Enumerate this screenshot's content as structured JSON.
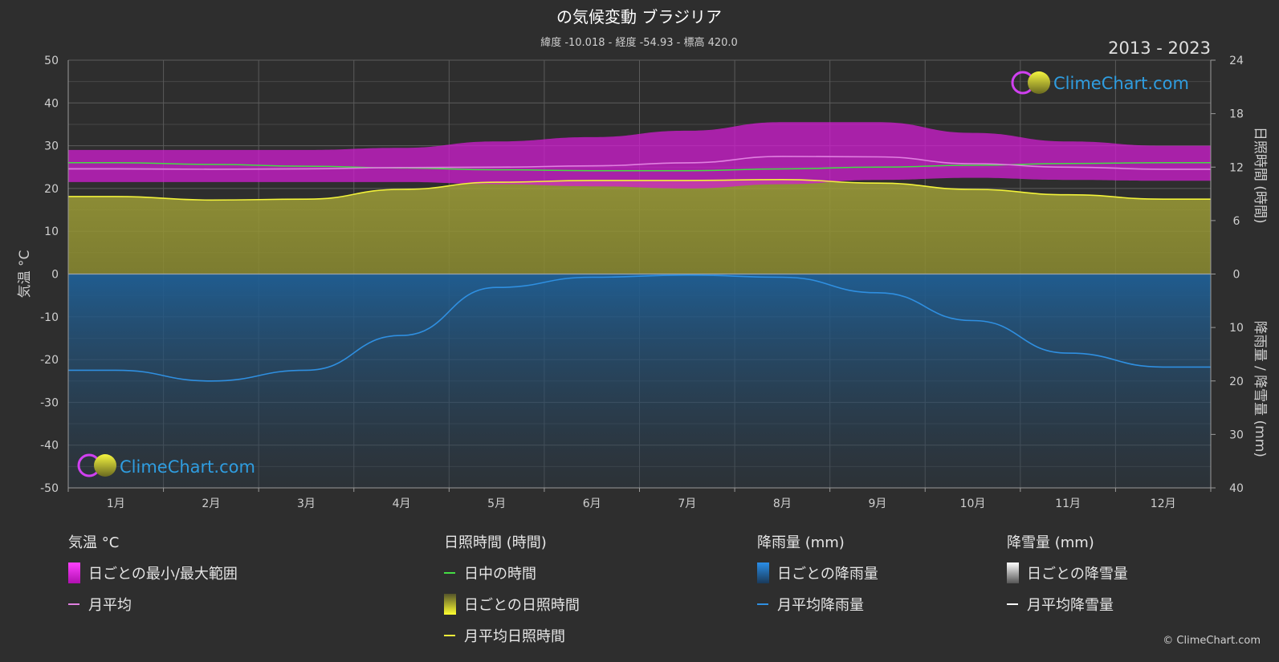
{
  "header": {
    "title": "の気候変動 ブラジリア",
    "subtitle": "緯度 -10.018 - 経度 -54.93 - 標高 420.0",
    "years": "2013 - 2023"
  },
  "brand": {
    "name": "ClimeChart.com",
    "copyright": "© ClimeChart.com"
  },
  "colors": {
    "background": "#2e2e2e",
    "temp_range": "#d21ed2",
    "temp_mean": "#e080e0",
    "daylight": "#44dd44",
    "sunshine_fill": "#9c9c3a",
    "sunshine_mean": "#f2f23a",
    "rain": "#1e5a8c",
    "rain_mean": "#2f8fe0",
    "snow_mean": "#ffffff"
  },
  "chart_data": {
    "type": "area",
    "title": "の気候変動 ブラジリア",
    "categories": [
      "1月",
      "2月",
      "3月",
      "4月",
      "5月",
      "6月",
      "7月",
      "8月",
      "9月",
      "10月",
      "11月",
      "12月"
    ],
    "axes": {
      "left": {
        "label": "気温 °C",
        "range": [
          -50,
          50
        ],
        "ticks": [
          50,
          40,
          30,
          20,
          10,
          0,
          -10,
          -20,
          -30,
          -40,
          -50
        ]
      },
      "right_top": {
        "label": "日照時間 (時間)",
        "range": [
          0,
          24
        ],
        "ticks": [
          24,
          18,
          12,
          6,
          0
        ]
      },
      "right_bottom": {
        "label": "降雨量 / 降雪量 (mm)",
        "range": [
          0,
          40
        ],
        "ticks": [
          10,
          20,
          30,
          40
        ]
      }
    },
    "grid": true,
    "series": [
      {
        "name": "日中の時間",
        "axis": "hours",
        "values": [
          12.5,
          12.3,
          12.1,
          11.9,
          11.7,
          11.6,
          11.6,
          11.8,
          12.0,
          12.2,
          12.4,
          12.5
        ]
      },
      {
        "name": "月平均",
        "axis": "temperature",
        "values": [
          24.6,
          24.5,
          24.6,
          24.9,
          25.0,
          25.3,
          26.0,
          27.5,
          27.4,
          25.8,
          25.0,
          24.5
        ]
      },
      {
        "name": "月平均日照時間",
        "axis": "hours",
        "values": [
          8.7,
          8.3,
          8.4,
          9.5,
          10.3,
          10.5,
          10.5,
          10.6,
          10.2,
          9.5,
          8.9,
          8.4
        ]
      },
      {
        "name": "月平均降雨量",
        "axis": "precipitation",
        "values": [
          18.0,
          20.0,
          18.0,
          11.5,
          2.5,
          0.6,
          0.2,
          0.6,
          3.5,
          8.7,
          14.8,
          17.4
        ]
      },
      {
        "name": "月平均降雪量",
        "axis": "precipitation",
        "values": [
          0,
          0,
          0,
          0,
          0,
          0,
          0,
          0,
          0,
          0,
          0,
          0
        ]
      }
    ],
    "daily_temp_range": {
      "name": "日ごとの最小/最大範囲",
      "min": [
        21.5,
        21.5,
        21.5,
        21.5,
        21.0,
        20.5,
        20.0,
        21.0,
        22.0,
        22.5,
        22.0,
        21.8
      ],
      "max": [
        29.0,
        29.0,
        29.0,
        29.5,
        31.0,
        32.0,
        33.5,
        35.5,
        35.5,
        33.0,
        31.0,
        30.0
      ]
    }
  },
  "legend": [
    {
      "heading": "気温 °C",
      "items": [
        {
          "swatch": "range",
          "label": "日ごとの最小/最大範囲"
        },
        {
          "swatch": "line-temp",
          "label": "月平均"
        }
      ]
    },
    {
      "heading": "日照時間 (時間)",
      "items": [
        {
          "swatch": "line-daylight",
          "label": "日中の時間"
        },
        {
          "swatch": "sun-bar",
          "label": "日ごとの日照時間"
        },
        {
          "swatch": "line-sun",
          "label": "月平均日照時間"
        }
      ]
    },
    {
      "heading": "降雨量 (mm)",
      "items": [
        {
          "swatch": "rain-bar",
          "label": "日ごとの降雨量"
        },
        {
          "swatch": "line-rain",
          "label": "月平均降雨量"
        }
      ]
    },
    {
      "heading": "降雪量 (mm)",
      "items": [
        {
          "swatch": "snow-bar",
          "label": "日ごとの降雪量"
        },
        {
          "swatch": "line-snow",
          "label": "月平均降雪量"
        }
      ]
    }
  ]
}
